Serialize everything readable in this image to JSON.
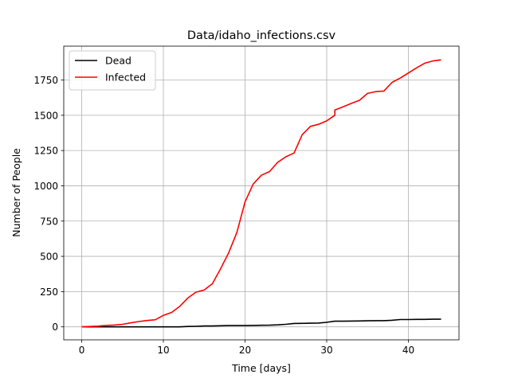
{
  "chart_data": {
    "type": "line",
    "title": "Data/idaho_infections.csv",
    "xlabel": "Time [days]",
    "ylabel": "Number of People",
    "xlim": [
      -2.2,
      46.2
    ],
    "ylim": [
      -92,
      1990
    ],
    "xticks": [
      0,
      10,
      20,
      30,
      40
    ],
    "yticks": [
      0,
      250,
      500,
      750,
      1000,
      1250,
      1500,
      1750
    ],
    "xtick_labels": [
      "0",
      "10",
      "20",
      "30",
      "40"
    ],
    "ytick_labels": [
      "0",
      "250",
      "500",
      "750",
      "1000",
      "1250",
      "1500",
      "1750"
    ],
    "grid": true,
    "legend_position": "top-left",
    "series": [
      {
        "name": "Dead",
        "color": "#000000",
        "x": [
          0,
          1,
          2,
          3,
          4,
          5,
          6,
          7,
          8,
          9,
          10,
          11,
          12,
          13,
          14,
          15,
          16,
          17,
          18,
          19,
          20,
          21,
          22,
          23,
          24,
          25,
          26,
          27,
          28,
          29,
          30,
          31,
          32,
          33,
          34,
          35,
          36,
          37,
          38,
          39,
          40,
          41,
          42,
          43,
          44
        ],
        "y": [
          0,
          0,
          0,
          0,
          0,
          0,
          0,
          0,
          0,
          0,
          0,
          0,
          0,
          3,
          4,
          6,
          6,
          8,
          9,
          9,
          9,
          10,
          11,
          12,
          14,
          18,
          24,
          25,
          26,
          27,
          32,
          40,
          40,
          41,
          42,
          43,
          44,
          44,
          47,
          52,
          52,
          53,
          53,
          54,
          54
        ]
      },
      {
        "name": "Infected",
        "color": "#ff0000",
        "x": [
          0,
          1,
          2,
          3,
          4,
          5,
          6,
          7,
          8,
          9,
          10,
          11,
          12,
          13,
          14,
          15,
          16,
          17,
          18,
          19,
          20,
          21,
          22,
          23,
          24,
          25,
          26,
          27,
          28,
          29,
          30,
          31,
          31,
          32,
          33,
          34,
          35,
          36,
          37,
          38,
          39,
          40,
          41,
          42,
          43,
          44
        ],
        "y": [
          0,
          3,
          5,
          10,
          13,
          18,
          28,
          38,
          45,
          50,
          81,
          102,
          145,
          205,
          246,
          261,
          306,
          412,
          525,
          670,
          886,
          1013,
          1075,
          1101,
          1167,
          1206,
          1232,
          1362,
          1421,
          1436,
          1460,
          1500,
          1537,
          1560,
          1584,
          1606,
          1655,
          1668,
          1672,
          1733,
          1764,
          1800,
          1836,
          1869,
          1885,
          1893
        ]
      }
    ]
  }
}
